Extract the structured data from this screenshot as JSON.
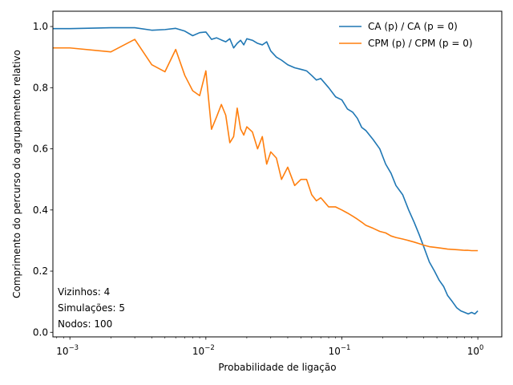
{
  "chart_data": {
    "type": "line",
    "xlabel": "Probabilidade de ligação",
    "ylabel": "Comprimento do percurso do agrupamento relativo",
    "x_scale": "log",
    "xlim": [
      0.00075,
      1.5
    ],
    "ylim": [
      -0.015,
      1.05
    ],
    "x_ticks": [
      {
        "value": 0.001,
        "label": "10",
        "exp": "−3"
      },
      {
        "value": 0.01,
        "label": "10",
        "exp": "−2"
      },
      {
        "value": 0.1,
        "label": "10",
        "exp": "−1"
      },
      {
        "value": 1,
        "label": "10",
        "exp": "0"
      }
    ],
    "y_ticks": [
      {
        "value": 0.0,
        "label": "0.0"
      },
      {
        "value": 0.2,
        "label": "0.2"
      },
      {
        "value": 0.4,
        "label": "0.4"
      },
      {
        "value": 0.6,
        "label": "0.6"
      },
      {
        "value": 0.8,
        "label": "0.8"
      },
      {
        "value": 1.0,
        "label": "1.0"
      }
    ],
    "legend_position": "top-right",
    "grid": false,
    "series": [
      {
        "name": "CA (p) / CA (p = 0)",
        "color": "#1f77b4",
        "x": [
          0.0007,
          0.001,
          0.002,
          0.003,
          0.004,
          0.005,
          0.006,
          0.007,
          0.008,
          0.009,
          0.01,
          0.011,
          0.012,
          0.013,
          0.014,
          0.015,
          0.016,
          0.017,
          0.018,
          0.019,
          0.02,
          0.022,
          0.024,
          0.026,
          0.028,
          0.03,
          0.033,
          0.036,
          0.04,
          0.045,
          0.05,
          0.055,
          0.06,
          0.065,
          0.07,
          0.08,
          0.09,
          0.1,
          0.11,
          0.12,
          0.13,
          0.14,
          0.15,
          0.17,
          0.19,
          0.21,
          0.23,
          0.25,
          0.28,
          0.31,
          0.34,
          0.37,
          0.4,
          0.44,
          0.48,
          0.52,
          0.56,
          0.6,
          0.65,
          0.7,
          0.75,
          0.8,
          0.85,
          0.9,
          0.95,
          1.0
        ],
        "values": [
          0.993,
          0.993,
          0.996,
          0.996,
          0.988,
          0.99,
          0.994,
          0.985,
          0.97,
          0.98,
          0.982,
          0.958,
          0.963,
          0.956,
          0.95,
          0.96,
          0.93,
          0.945,
          0.955,
          0.94,
          0.96,
          0.955,
          0.945,
          0.94,
          0.95,
          0.92,
          0.9,
          0.89,
          0.875,
          0.865,
          0.86,
          0.855,
          0.84,
          0.825,
          0.83,
          0.8,
          0.77,
          0.76,
          0.73,
          0.72,
          0.7,
          0.67,
          0.66,
          0.63,
          0.6,
          0.55,
          0.52,
          0.48,
          0.45,
          0.4,
          0.36,
          0.32,
          0.28,
          0.23,
          0.2,
          0.17,
          0.15,
          0.12,
          0.1,
          0.08,
          0.07,
          0.065,
          0.06,
          0.065,
          0.06,
          0.07
        ]
      },
      {
        "name": "CPM (p) / CPM (p = 0)",
        "color": "#ff7f0e",
        "x": [
          0.0007,
          0.001,
          0.002,
          0.003,
          0.004,
          0.005,
          0.006,
          0.007,
          0.008,
          0.009,
          0.01,
          0.011,
          0.012,
          0.013,
          0.014,
          0.015,
          0.016,
          0.017,
          0.018,
          0.019,
          0.02,
          0.022,
          0.024,
          0.026,
          0.028,
          0.03,
          0.033,
          0.036,
          0.04,
          0.045,
          0.05,
          0.055,
          0.06,
          0.065,
          0.07,
          0.08,
          0.09,
          0.1,
          0.11,
          0.12,
          0.13,
          0.14,
          0.15,
          0.17,
          0.19,
          0.21,
          0.23,
          0.25,
          0.28,
          0.31,
          0.34,
          0.37,
          0.4,
          0.44,
          0.48,
          0.52,
          0.56,
          0.6,
          0.65,
          0.7,
          0.75,
          0.8,
          0.85,
          0.9,
          0.95,
          1.0
        ],
        "values": [
          0.93,
          0.93,
          0.917,
          0.958,
          0.875,
          0.852,
          0.925,
          0.84,
          0.79,
          0.774,
          0.855,
          0.664,
          0.705,
          0.745,
          0.71,
          0.62,
          0.64,
          0.733,
          0.665,
          0.645,
          0.672,
          0.655,
          0.6,
          0.64,
          0.55,
          0.59,
          0.57,
          0.5,
          0.54,
          0.48,
          0.5,
          0.5,
          0.45,
          0.43,
          0.44,
          0.41,
          0.41,
          0.4,
          0.39,
          0.38,
          0.37,
          0.36,
          0.35,
          0.34,
          0.33,
          0.325,
          0.315,
          0.31,
          0.305,
          0.3,
          0.295,
          0.29,
          0.285,
          0.28,
          0.278,
          0.276,
          0.274,
          0.272,
          0.271,
          0.27,
          0.269,
          0.268,
          0.268,
          0.267,
          0.267,
          0.267
        ]
      }
    ],
    "annotations": [
      "Vizinhos: 4",
      "Simulações: 5",
      "Nodos: 100"
    ]
  }
}
